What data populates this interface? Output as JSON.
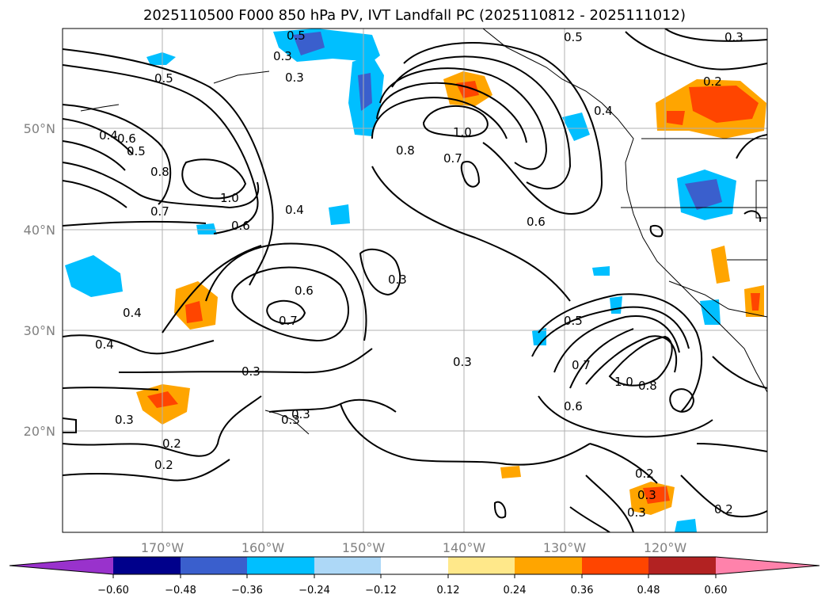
{
  "title": "2025110500 F000 850 hPa PV, IVT Landfall PC (2025110812 - 2025111012)",
  "lon_ticks": [
    "170°W",
    "160°W",
    "150°W",
    "140°W",
    "130°W",
    "120°W"
  ],
  "lat_ticks": [
    "50°N",
    "40°N",
    "30°N",
    "20°N"
  ],
  "colorbar": {
    "ticks": [
      "−0.60",
      "−0.48",
      "−0.36",
      "−0.24",
      "−0.12",
      "0.12",
      "0.24",
      "0.36",
      "0.48",
      "0.60"
    ],
    "colors": [
      "#9932cc",
      "#00008b",
      "#3a5fcd",
      "#00bfff",
      "#add8f7",
      "#ffffff",
      "#ffe88a",
      "#ffa500",
      "#ff4500",
      "#b22222",
      "#ff82ab"
    ]
  },
  "contour_labels": [
    "0.5",
    "0.3",
    "0.5",
    "0.3",
    "0.5",
    "0.4",
    "0.2",
    "0.3",
    "0.4",
    "0.6",
    "0.5",
    "0.8",
    "1.0",
    "0.7",
    "0.6",
    "1.0",
    "0.7",
    "0.8",
    "0.4",
    "0.6",
    "0.3",
    "0.6",
    "0.7",
    "0.4",
    "0.4",
    "0.3",
    "0.3",
    "0.3",
    "0.3",
    "0.5",
    "0.7",
    "1.0",
    "0.8",
    "0.6",
    "0.2",
    "0.2",
    "0.3",
    "0.2",
    "0.3",
    "0.2",
    "0.3"
  ]
}
